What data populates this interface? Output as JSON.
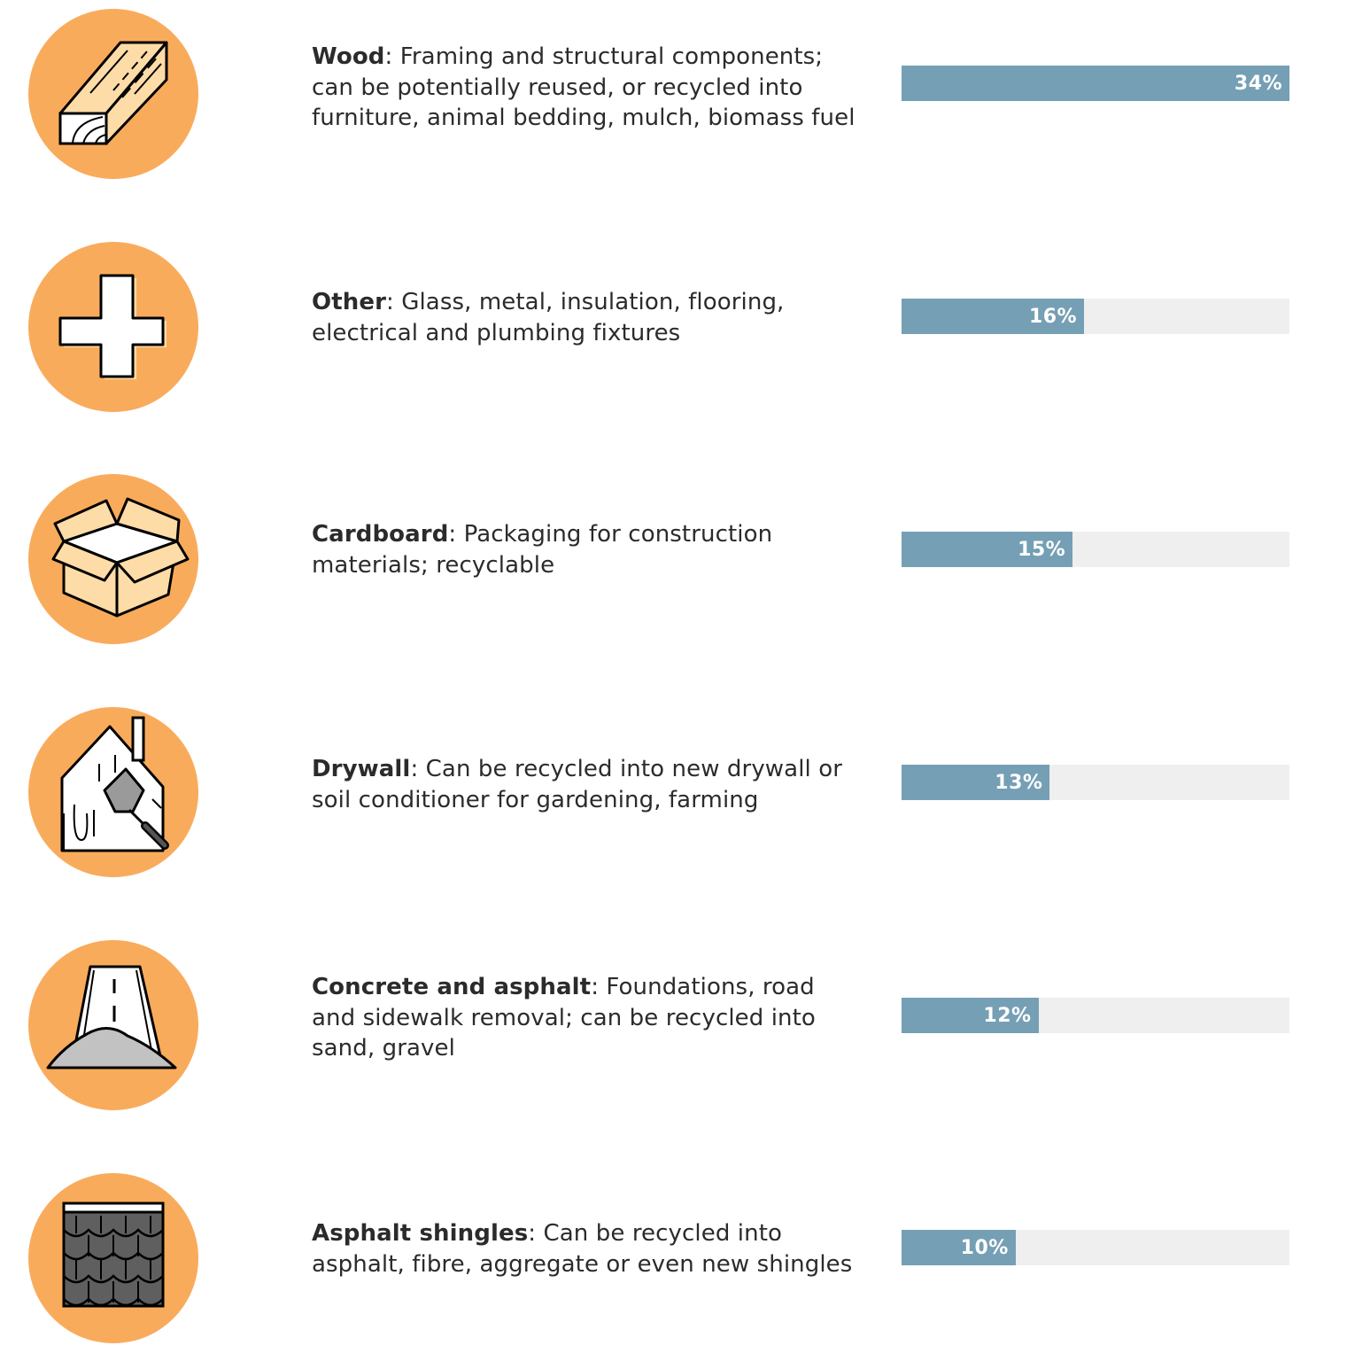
{
  "chart_data": {
    "type": "bar",
    "orientation": "horizontal",
    "xlim": [
      0,
      34
    ],
    "categories": [
      "Wood",
      "Other",
      "Cardboard",
      "Drywall",
      "Concrete and asphalt",
      "Asphalt shingles"
    ],
    "values": [
      34,
      16,
      15,
      13,
      12,
      10
    ],
    "value_labels": [
      "34%",
      "16%",
      "15%",
      "13%",
      "12%",
      "10%"
    ],
    "descriptions": [
      ": Framing and structural components; can be potentially reused, or recycled into furniture, animal bedding, mulch, biomass fuel",
      ": Glass, metal, insulation, flooring, electrical and plumbing fixtures",
      ": Packaging for construction materials; recyclable",
      ": Can be recycled into new drywall or soil conditioner for gardening, farming",
      ": Foundations, road and sidewalk removal; can be recycled into sand, gravel",
      ": Can be recycled into asphalt, fibre, aggregate or even new shingles"
    ],
    "icons": [
      "wood-beam-icon",
      "plus-icon",
      "cardboard-box-icon",
      "drywall-house-icon",
      "road-gravel-icon",
      "shingles-icon"
    ],
    "colors": {
      "bar": "#759fb4",
      "track": "#efefef",
      "icon_bg": "#f9ab5c",
      "icon_fill": "#fedca7"
    }
  }
}
